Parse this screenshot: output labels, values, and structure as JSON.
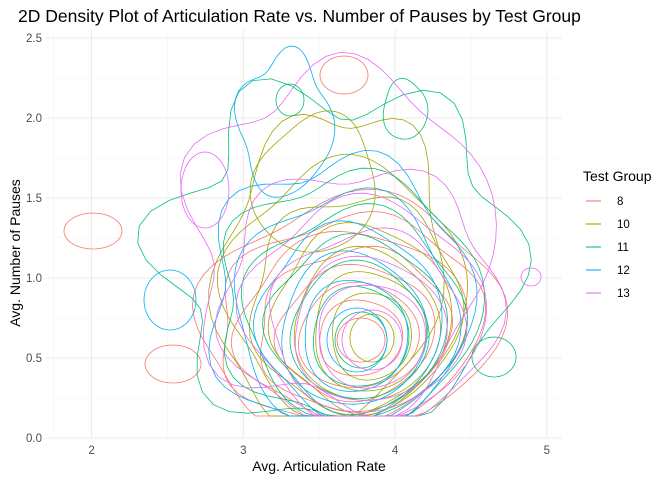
{
  "chart_data": {
    "type": "density2d",
    "title": "2D Density Plot of Articulation Rate vs. Number of Pauses by Test Group",
    "xlabel": "Avg. Articulation Rate",
    "ylabel": "Avg. Number of Pauses",
    "xlim": [
      1.7,
      5.1
    ],
    "ylim": [
      0.0,
      2.55
    ],
    "x_ticks": [
      2,
      3,
      4,
      5
    ],
    "x_tick_labels": [
      "2",
      "3",
      "4",
      "5"
    ],
    "y_ticks": [
      0.0,
      0.5,
      1.0,
      1.5,
      2.0,
      2.5
    ],
    "y_tick_labels": [
      "0.0",
      "0.5",
      "1.0",
      "1.5",
      "2.0",
      "2.5"
    ],
    "grid": true,
    "theme": "minimal",
    "legend": {
      "title": "Test Group",
      "position": "right"
    },
    "series": [
      {
        "name": "8",
        "color": "#F8766D",
        "peaks": [
          [
            3.55,
            0.72
          ],
          [
            2.02,
            1.28
          ],
          [
            2.55,
            0.42
          ],
          [
            3.65,
            2.29
          ]
        ]
      },
      {
        "name": "10",
        "color": "#A3A500",
        "peaks": [
          [
            3.62,
            0.82
          ],
          [
            3.3,
            1.55
          ]
        ]
      },
      {
        "name": "11",
        "color": "#00BF7D",
        "peaks": [
          [
            3.55,
            0.7
          ],
          [
            4.65,
            0.55
          ],
          [
            3.35,
            1.9
          ]
        ]
      },
      {
        "name": "12",
        "color": "#00B0F6",
        "peaks": [
          [
            3.5,
            0.75
          ],
          [
            2.5,
            0.83
          ],
          [
            3.25,
            2.1
          ]
        ]
      },
      {
        "name": "13",
        "color": "#E76BF3",
        "peaks": [
          [
            3.65,
            0.85
          ],
          [
            4.9,
            0.98
          ],
          [
            3.0,
            1.6
          ]
        ]
      }
    ]
  }
}
